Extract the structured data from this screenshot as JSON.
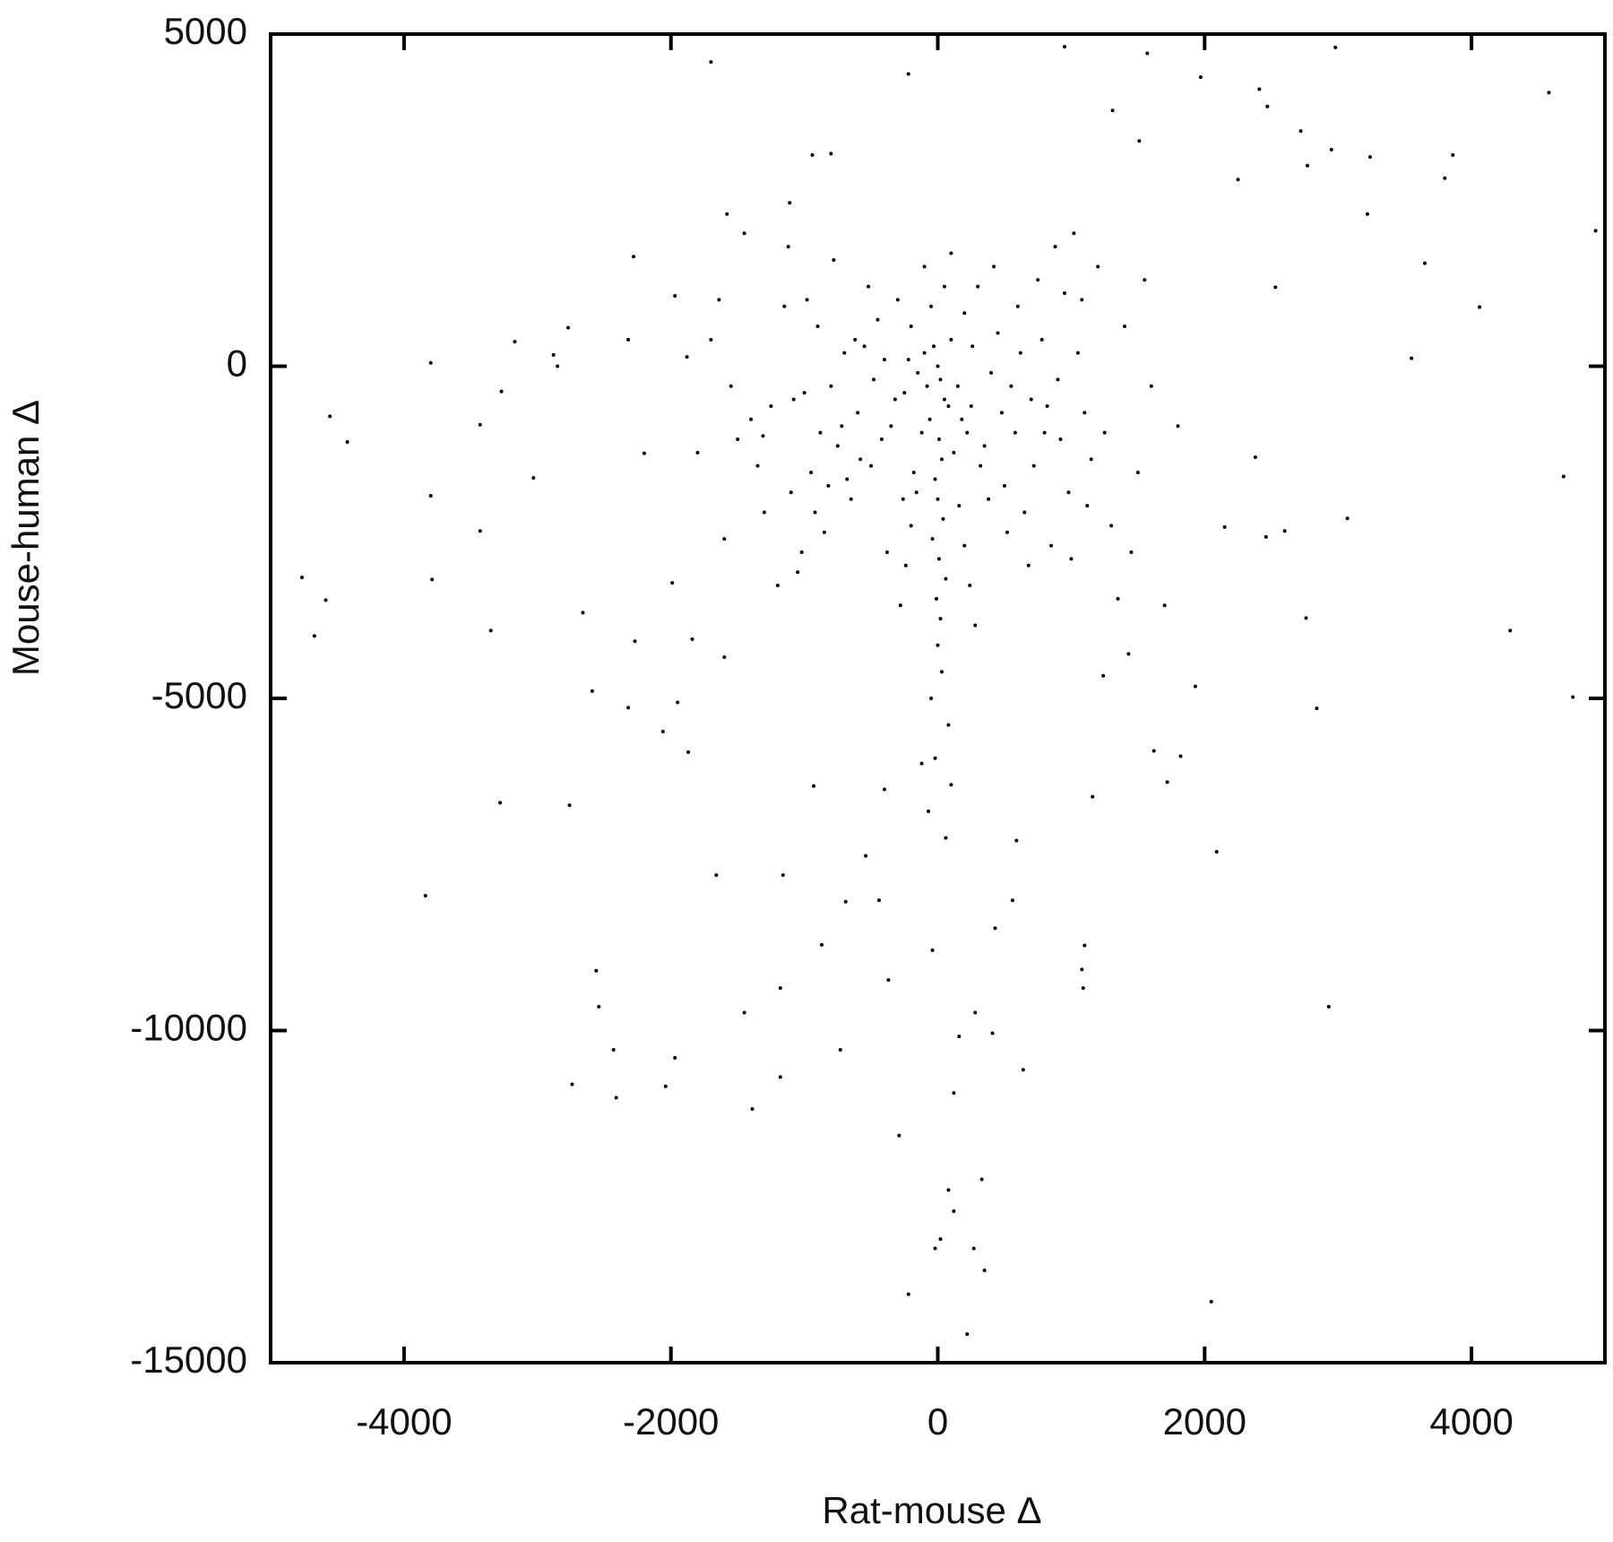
{
  "chart_data": {
    "type": "scatter",
    "x_label": "Rat-mouse Δ",
    "y_label": "Mouse-human Δ",
    "xlim": [
      -5000,
      5000
    ],
    "ylim": [
      -15000,
      5000
    ],
    "xticks": [
      -4000,
      -2000,
      0,
      2000,
      4000
    ],
    "yticks": [
      -15000,
      -10000,
      -5000,
      0,
      5000
    ],
    "color": "#000000",
    "x": [
      -4765,
      -4672,
      -4587,
      -4556,
      -4425,
      -3800,
      -3800,
      -3790,
      -3840,
      -3430,
      -3430,
      -3350,
      -3270,
      -3280,
      -3170,
      -3030,
      -2880,
      -2850,
      -2770,
      -2760,
      -2740,
      -2660,
      -2590,
      -2560,
      -2540,
      -2430,
      -2410,
      -2320,
      -2320,
      -2280,
      -2270,
      -2200,
      -2060,
      -2040,
      -1990,
      -1970,
      -1970,
      -1950,
      -1880,
      -1870,
      -1840,
      -1700,
      -1660,
      -1640,
      -1600,
      -1580,
      -1450,
      -1390,
      -1310,
      -1180,
      -1180,
      -1160,
      -1110,
      -940,
      -800,
      -930,
      -870,
      -730,
      -690,
      -540,
      -440,
      -400,
      -370,
      -290,
      -220,
      -220,
      -120,
      -40,
      -20,
      20,
      80,
      120,
      120,
      160,
      220,
      270,
      280,
      330,
      350,
      410,
      430,
      560,
      640,
      590,
      950,
      1080,
      1090,
      1100,
      1160,
      1240,
      1310,
      1430,
      1510,
      1570,
      1620,
      1720,
      1820,
      1930,
      1970,
      2050,
      2090,
      2150,
      2250,
      2380,
      2410,
      2460,
      2470,
      2530,
      2600,
      2720,
      2760,
      2770,
      2840,
      2930,
      2950,
      2980,
      3070,
      3240,
      3220,
      3550,
      3650,
      3800,
      3860,
      4060,
      4290,
      4580,
      4690,
      4760,
      4930,
      0,
      20,
      -30,
      50,
      -60,
      10,
      30,
      -20,
      0,
      40,
      -40,
      10,
      60,
      -10,
      20,
      0,
      30,
      -50,
      80,
      -20,
      100,
      -70,
      60,
      -100,
      100,
      -150,
      150,
      -200,
      200,
      -250,
      250,
      -300,
      300,
      -350,
      350,
      -400,
      400,
      -450,
      450,
      -500,
      500,
      -550,
      550,
      -600,
      600,
      -650,
      650,
      -700,
      700,
      -750,
      750,
      -800,
      800,
      -850,
      850,
      -900,
      900,
      -950,
      950,
      -1000,
      1000,
      -1050,
      1050,
      -1100,
      1100,
      -1150,
      1150,
      -1200,
      1200,
      -1300,
      1300,
      -1400,
      1400,
      -1500,
      1500,
      -1600,
      1600,
      -1700,
      1700,
      -1800,
      1800,
      -80,
      80,
      -120,
      120,
      -160,
      160,
      -200,
      200,
      -240,
      240,
      -280,
      280,
      -50,
      50,
      -100,
      100,
      -180,
      180,
      -220,
      220,
      -260,
      260,
      -320,
      320,
      -380,
      380,
      -420,
      420,
      -480,
      480,
      -520,
      520,
      -580,
      580,
      -620,
      620,
      -680,
      680,
      -720,
      720,
      -780,
      780,
      -820,
      820,
      -880,
      880,
      -920,
      920,
      -980,
      980,
      -1020,
      1020,
      -1080,
      1080,
      -1120,
      1120,
      -1250,
      1250,
      -1350,
      1350,
      -1450,
      1450,
      -1550,
      1550
    ],
    "values": [
      -3180,
      -4060,
      -3520,
      -754,
      -1140,
      50,
      -1950,
      -3210,
      -7970,
      -880,
      -2480,
      -3980,
      -380,
      -6570,
      370,
      -1680,
      170,
      0,
      580,
      -6610,
      -10810,
      -3710,
      -4890,
      -9100,
      -9640,
      -10290,
      -11010,
      400,
      -5140,
      1650,
      -4140,
      -1310,
      -5500,
      -10840,
      -3260,
      -10410,
      1060,
      -5060,
      140,
      -5810,
      -4110,
      4580,
      -7660,
      1000,
      -4380,
      2290,
      -9730,
      -11180,
      -1050,
      -10700,
      -9360,
      -7660,
      2460,
      3180,
      3200,
      -6320,
      -8710,
      -10290,
      -8060,
      -7370,
      -8040,
      -6370,
      -9240,
      -11580,
      -13970,
      4400,
      -5980,
      -8790,
      -13280,
      -13140,
      -12400,
      -12720,
      -10940,
      -10090,
      -14570,
      -13280,
      -9730,
      -12240,
      -13610,
      -10040,
      -8460,
      -8040,
      -10590,
      -7140,
      4810,
      -9080,
      -9360,
      -8720,
      -6480,
      -4660,
      3850,
      -4330,
      3390,
      4710,
      -5790,
      -6260,
      -5870,
      -4820,
      4350,
      -14080,
      -7310,
      -2420,
      2810,
      -1370,
      4170,
      -2570,
      3910,
      1190,
      -2480,
      3540,
      -3790,
      3020,
      -5150,
      -9640,
      3260,
      4800,
      -2290,
      3150,
      2290,
      120,
      1550,
      2830,
      3180,
      890,
      -3980,
      4120,
      -1660,
      -4980,
      2040,
      0,
      -200,
      300,
      -500,
      -800,
      -1100,
      -1400,
      -1700,
      -2000,
      -2300,
      -2600,
      -2900,
      -3200,
      -3500,
      -3800,
      -4200,
      -4600,
      -5000,
      -5400,
      -5900,
      -6300,
      -6700,
      -7100,
      200,
      400,
      -100,
      -300,
      600,
      800,
      -400,
      -600,
      1000,
      1200,
      -900,
      -1200,
      100,
      -100,
      700,
      500,
      -1500,
      -1800,
      300,
      -300,
      -700,
      900,
      -2000,
      -2200,
      200,
      -500,
      -1200,
      1300,
      -300,
      -1000,
      -2500,
      -2700,
      600,
      -200,
      -1600,
      1100,
      -400,
      -2900,
      -3100,
      200,
      -1900,
      -700,
      900,
      -1400,
      -3300,
      1500,
      -2200,
      -2400,
      -800,
      600,
      -1100,
      -1600,
      -2600,
      -300,
      400,
      -3600,
      -1300,
      -900,
      -300,
      -600,
      -1000,
      -1300,
      -1900,
      -2100,
      -2400,
      -2700,
      -3000,
      -3300,
      -3600,
      -3900,
      900,
      1200,
      1500,
      1700,
      -1600,
      -800,
      100,
      -1000,
      -2000,
      300,
      -500,
      -1500,
      -2800,
      -2000,
      -1100,
      1500,
      -200,
      -700,
      1200,
      -2500,
      -1400,
      -1000,
      400,
      200,
      -1700,
      -3000,
      -900,
      -1500,
      1600,
      400,
      -1800,
      -600,
      -1000,
      1800,
      -2200,
      -1100,
      1000,
      -1900,
      -2800,
      2000,
      -500,
      1000,
      1800,
      -2100,
      -600,
      -1000,
      -1500,
      -3500,
      2000,
      -2800,
      -300,
      1300
    ]
  }
}
